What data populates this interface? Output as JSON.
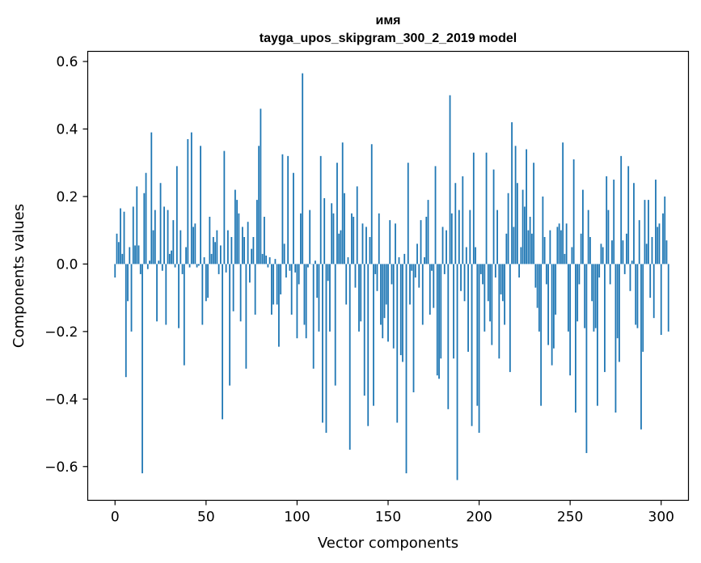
{
  "chart_data": {
    "type": "bar",
    "title": "имя",
    "subtitle": "tayga_upos_skipgram_300_2_2019 model",
    "xlabel": "Vector components",
    "ylabel": "Components values",
    "xlim": [
      -15,
      315
    ],
    "ylim": [
      -0.7,
      0.63
    ],
    "xticks": [
      0,
      50,
      100,
      150,
      200,
      250,
      300
    ],
    "yticks": [
      -0.6,
      -0.4,
      -0.2,
      0.0,
      0.2,
      0.4,
      0.6
    ],
    "xtick_labels": [
      "0",
      "50",
      "100",
      "150",
      "200",
      "250",
      "300"
    ],
    "ytick_labels": [
      "−0.6",
      "−0.4",
      "−0.2",
      "0.0",
      "0.2",
      "0.4",
      "0.6"
    ],
    "grid": false,
    "bar_color": "#1f77b4",
    "values": [
      -0.04,
      0.09,
      0.065,
      0.165,
      0.03,
      0.155,
      -0.335,
      -0.11,
      0.05,
      -0.2,
      0.17,
      0.055,
      0.23,
      0.055,
      -0.03,
      -0.62,
      0.21,
      0.27,
      -0.015,
      0.01,
      0.39,
      0.1,
      0.16,
      -0.17,
      0.01,
      0.24,
      -0.02,
      0.17,
      -0.18,
      0.16,
      0.03,
      0.04,
      0.13,
      -0.01,
      0.29,
      -0.19,
      0.1,
      -0.03,
      -0.3,
      0.05,
      0.37,
      -0.01,
      0.39,
      0.11,
      0.12,
      -0.01,
      -0.005,
      0.35,
      -0.18,
      0.02,
      -0.11,
      -0.1,
      0.14,
      0.03,
      0.08,
      0.065,
      0.1,
      -0.03,
      0.055,
      -0.46,
      0.335,
      -0.025,
      0.1,
      -0.36,
      0.08,
      -0.14,
      0.22,
      0.19,
      0.15,
      -0.17,
      0.11,
      0.08,
      -0.31,
      0.125,
      -0.055,
      0.045,
      0.08,
      -0.15,
      0.19,
      0.35,
      0.46,
      0.03,
      0.14,
      0.025,
      -0.01,
      0.02,
      -0.15,
      -0.12,
      0.015,
      -0.12,
      -0.245,
      -0.09,
      0.325,
      0.06,
      -0.04,
      0.32,
      -0.02,
      -0.15,
      0.27,
      -0.025,
      -0.22,
      -0.06,
      0.15,
      0.565,
      -0.18,
      -0.22,
      -0.01,
      0.16,
      0.0,
      -0.31,
      0.01,
      -0.1,
      -0.2,
      0.32,
      -0.47,
      0.195,
      -0.5,
      -0.05,
      -0.2,
      0.18,
      0.15,
      -0.36,
      0.3,
      0.09,
      0.1,
      0.36,
      0.21,
      -0.12,
      0.02,
      -0.55,
      0.15,
      0.14,
      -0.07,
      0.23,
      -0.2,
      -0.17,
      0.12,
      -0.39,
      0.11,
      -0.48,
      0.08,
      0.355,
      -0.42,
      -0.03,
      -0.08,
      0.15,
      -0.18,
      -0.22,
      -0.16,
      -0.12,
      -0.23,
      0.13,
      -0.06,
      -0.25,
      0.12,
      -0.47,
      0.02,
      -0.27,
      -0.29,
      0.03,
      -0.62,
      0.3,
      -0.12,
      -0.02,
      -0.38,
      -0.04,
      0.06,
      -0.07,
      0.13,
      -0.18,
      0.02,
      0.14,
      0.19,
      -0.15,
      -0.02,
      -0.13,
      0.29,
      -0.33,
      -0.34,
      -0.28,
      0.11,
      -0.03,
      0.1,
      -0.43,
      0.5,
      0.15,
      -0.28,
      0.24,
      -0.64,
      0.16,
      -0.08,
      0.26,
      -0.11,
      0.05,
      -0.26,
      0.16,
      -0.48,
      0.33,
      0.05,
      -0.42,
      -0.5,
      -0.03,
      -0.06,
      -0.2,
      0.33,
      -0.11,
      -0.17,
      -0.24,
      0.28,
      -0.04,
      0.16,
      -0.28,
      -0.09,
      -0.11,
      -0.18,
      0.09,
      0.21,
      -0.32,
      0.42,
      0.11,
      0.35,
      0.24,
      -0.04,
      0.05,
      0.22,
      0.17,
      0.34,
      0.1,
      0.14,
      0.09,
      0.3,
      -0.07,
      -0.13,
      -0.2,
      -0.42,
      0.2,
      0.08,
      -0.06,
      -0.24,
      0.1,
      -0.3,
      -0.25,
      -0.15,
      0.11,
      0.12,
      0.1,
      0.36,
      0.03,
      0.12,
      -0.2,
      -0.33,
      0.05,
      0.31,
      -0.44,
      -0.17,
      -0.06,
      0.09,
      0.22,
      -0.19,
      -0.56,
      0.16,
      0.08,
      -0.11,
      -0.2,
      -0.19,
      -0.42,
      -0.04,
      0.06,
      0.05,
      -0.32,
      0.26,
      0.16,
      -0.06,
      0.07,
      0.25,
      -0.44,
      -0.22,
      -0.29,
      0.32,
      0.07,
      -0.03,
      0.09,
      0.29,
      -0.08,
      0.01,
      0.24,
      -0.18,
      -0.19,
      0.13,
      -0.49,
      -0.26,
      0.19,
      0.06,
      0.19,
      -0.1,
      0.08,
      -0.16,
      0.25,
      0.11,
      0.12,
      -0.21,
      0.15,
      0.2,
      0.07,
      -0.2
    ]
  }
}
